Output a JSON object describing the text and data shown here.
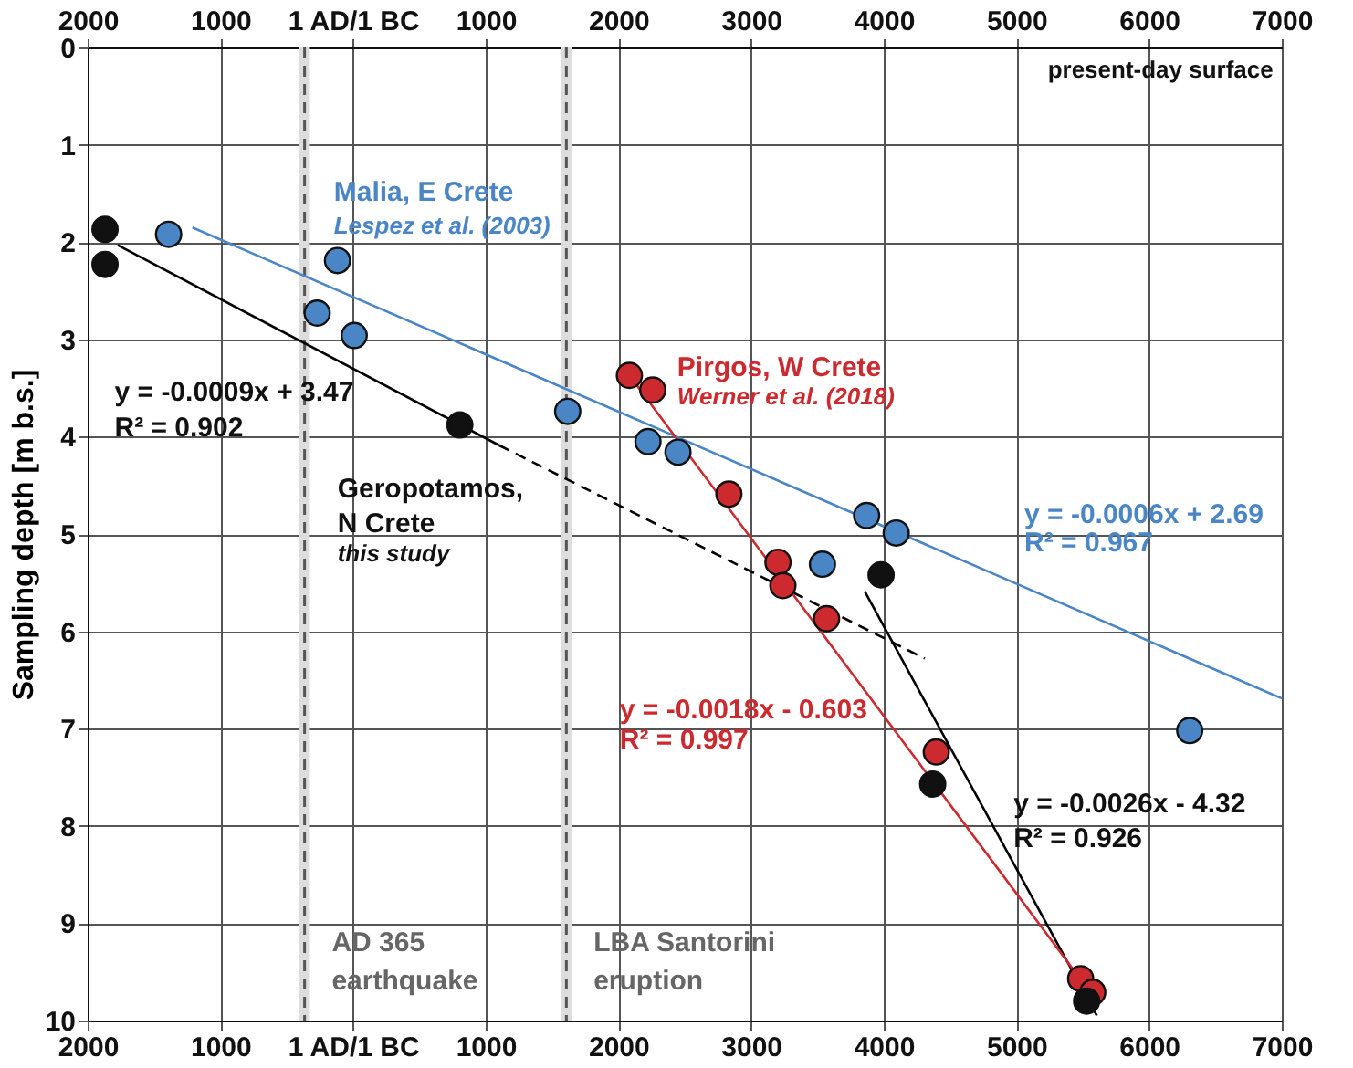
{
  "chart_data": {
    "type": "scatter",
    "ylabel": "Sampling depth [m b.s.]",
    "xlim": [
      -2000,
      7000
    ],
    "xticks": [
      {
        "value": -2000,
        "label": "2000"
      },
      {
        "value": -1000,
        "label": "1000"
      },
      {
        "value": 0,
        "label": "1 AD/1 BC"
      },
      1000,
      2000,
      3000,
      4000,
      5000,
      6000,
      7000
    ],
    "x2lim": [
      -2000,
      7000
    ],
    "x2ticks": [
      {
        "value": -2000,
        "label": "2000"
      },
      {
        "value": -1000,
        "label": "1000"
      },
      {
        "value": 0,
        "label": "1 AD/1 BC"
      },
      1000,
      2000,
      3000,
      4000,
      5000,
      6000,
      7000
    ],
    "ylim": [
      10,
      0
    ],
    "yticks": [
      0,
      1,
      2,
      3,
      4,
      5,
      6,
      7,
      8,
      9,
      10
    ],
    "grid": true,
    "marker": "circle",
    "series": [
      {
        "type": "line",
        "color": "#4a86c5",
        "line_style": "solid",
        "marker": "none",
        "x": [
          -1210,
          7000
        ],
        "values": [
          1.85,
          6.69
        ]
      },
      {
        "type": "line",
        "color": "#000000",
        "line_style": "solid",
        "marker": "none",
        "x": [
          -1775,
          1103
        ],
        "values": [
          2.03,
          4.09
        ]
      },
      {
        "type": "line",
        "color": "#000000",
        "line_style": "dashed",
        "marker": "none",
        "x": [
          1103,
          4309
        ],
        "values": [
          4.09,
          6.28
        ]
      },
      {
        "type": "line",
        "color": "#000000",
        "line_style": "solid",
        "marker": "none",
        "x": [
          3857,
          5606
        ],
        "values": [
          5.59,
          9.95
        ]
      },
      {
        "type": "line",
        "color": "#cc2a2e",
        "line_style": "solid",
        "marker": "none",
        "x": [
          2083,
          5551
        ],
        "values": [
          3.37,
          9.7
        ]
      },
      {
        "color": "#4a86c5",
        "x": [
          -1390,
          -117,
          -270,
          9,
          1618,
          2223,
          2449,
          3871,
          4094,
          3538,
          6306
        ],
        "values": [
          1.92,
          2.19,
          2.73,
          2.96,
          3.74,
          4.05,
          4.16,
          4.81,
          4.99,
          5.31,
          7.02
        ]
      },
      {
        "color": "#cc2a2e",
        "x": [
          2083,
          2259,
          2833,
          3203,
          3240,
          3569,
          4396,
          5484,
          5575
        ],
        "values": [
          3.37,
          3.52,
          4.59,
          5.29,
          5.53,
          5.87,
          7.24,
          9.57,
          9.71
        ]
      },
      {
        "color": "#111111",
        "x": [
          -1869,
          -1869,
          805,
          3980,
          4369,
          5529
        ],
        "values": [
          1.87,
          2.23,
          3.88,
          5.42,
          7.57,
          9.8
        ]
      }
    ],
    "bands": [
      {
        "axis": "x",
        "from": -405,
        "to": -325,
        "color": "#dddddd",
        "label": "AD 365\nearthquake"
      },
      {
        "axis": "x",
        "from": 1568,
        "to": 1648,
        "color": "#dddddd",
        "label": "LBA Santorini\neruption"
      }
    ],
    "ref_lines": [
      {
        "axis": "x",
        "value": -365,
        "color": "#555555",
        "line_style": "dashed"
      },
      {
        "axis": "x",
        "value": 1608,
        "color": "#555555",
        "line_style": "dashed"
      }
    ],
    "annotations": [
      "present-day surface",
      "Malia, E Crete",
      "Lespez et al. (2003)",
      "Pirgos, W Crete",
      "Werner et al. (2018)",
      "Geropotamos,\nN Crete",
      "this study",
      "y = -0.0009x + 3.47",
      "R² = 0.902",
      "y = -0.0006x + 2.69",
      "R² = 0.967",
      "y = -0.0018x - 0.603",
      "R² = 0.997",
      "y = -0.0026x - 4.32",
      "R² = 0.926"
    ]
  }
}
